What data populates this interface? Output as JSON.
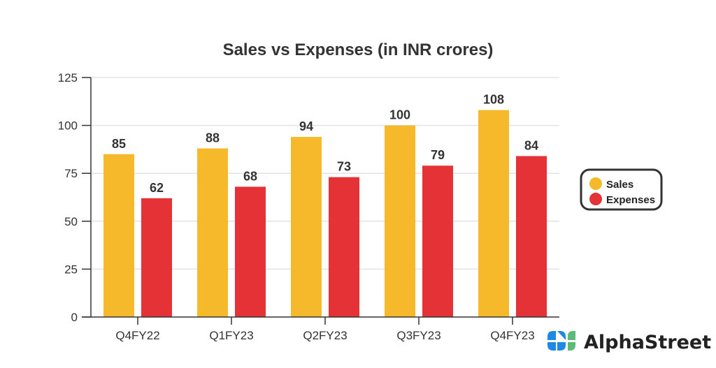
{
  "chart_data": {
    "type": "bar",
    "title": "Sales vs Expenses (in INR crores)",
    "xlabel": "",
    "ylabel": "",
    "categories": [
      "Q4FY22",
      "Q1FY23",
      "Q2FY23",
      "Q3FY23",
      "Q4FY23"
    ],
    "series": [
      {
        "name": "Sales",
        "values": [
          85,
          88,
          94,
          100,
          108
        ],
        "color": "#F6B92B"
      },
      {
        "name": "Expenses",
        "values": [
          62,
          68,
          73,
          79,
          84
        ],
        "color": "#E53236"
      }
    ],
    "ylim": [
      0,
      125
    ],
    "yticks": [
      0,
      25,
      50,
      75,
      100,
      125
    ],
    "grid": true,
    "legend_position": "right",
    "data_labels": true
  },
  "branding": {
    "name": "AlphaStreet",
    "logo_colors": {
      "blue": "#1E88E5",
      "green": "#5DBB7A"
    }
  }
}
